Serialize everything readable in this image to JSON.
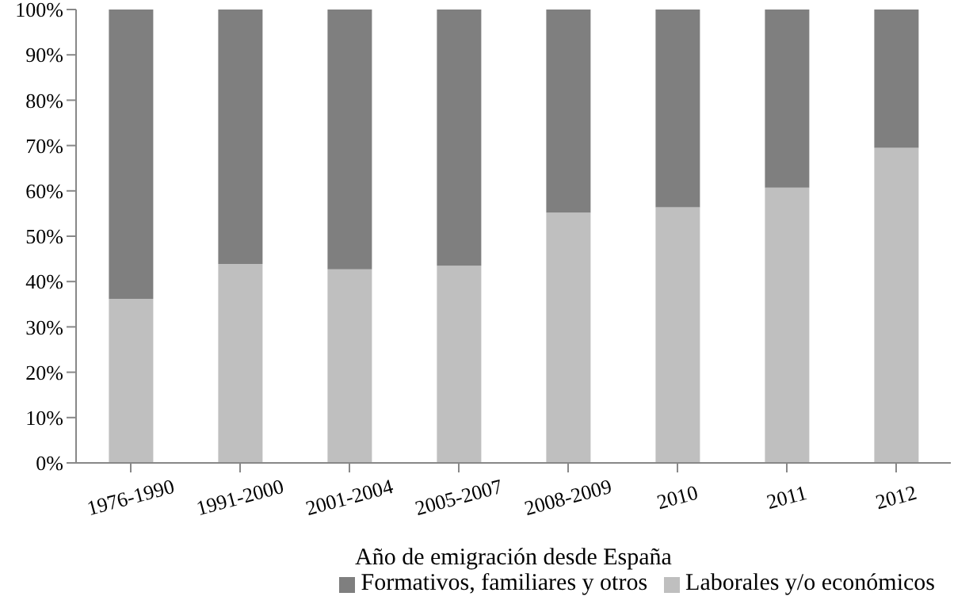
{
  "chart_data": {
    "type": "bar",
    "stacked": true,
    "xlabel": "Año de emigración desde España",
    "categories": [
      "1976-1990",
      "1991-2000",
      "2001-2004",
      "2005-2007",
      "2008-2009",
      "2010",
      "2011",
      "2012"
    ],
    "series": [
      {
        "name": "Laborales y/o económicos",
        "color": "#bfbfbf",
        "values": [
          36.2,
          43.9,
          42.7,
          43.5,
          55.2,
          56.4,
          60.7,
          69.5
        ]
      },
      {
        "name": "Formativos, familiares y otros",
        "color": "#7f7f7f",
        "values": [
          63.8,
          56.1,
          57.3,
          56.5,
          44.8,
          43.6,
          39.3,
          30.5
        ]
      }
    ],
    "ylim": [
      0,
      100
    ],
    "yticks": [
      {
        "value": 0,
        "label": "0%"
      },
      {
        "value": 10,
        "label": "10%"
      },
      {
        "value": 20,
        "label": "20%"
      },
      {
        "value": 30,
        "label": "30%"
      },
      {
        "value": 40,
        "label": "40%"
      },
      {
        "value": 50,
        "label": "50%"
      },
      {
        "value": 60,
        "label": "60%"
      },
      {
        "value": 70,
        "label": "70%"
      },
      {
        "value": 80,
        "label": "80%"
      },
      {
        "value": 90,
        "label": "90%"
      },
      {
        "value": 100,
        "label": "100%"
      }
    ],
    "grid": false,
    "legend": "bottom"
  }
}
